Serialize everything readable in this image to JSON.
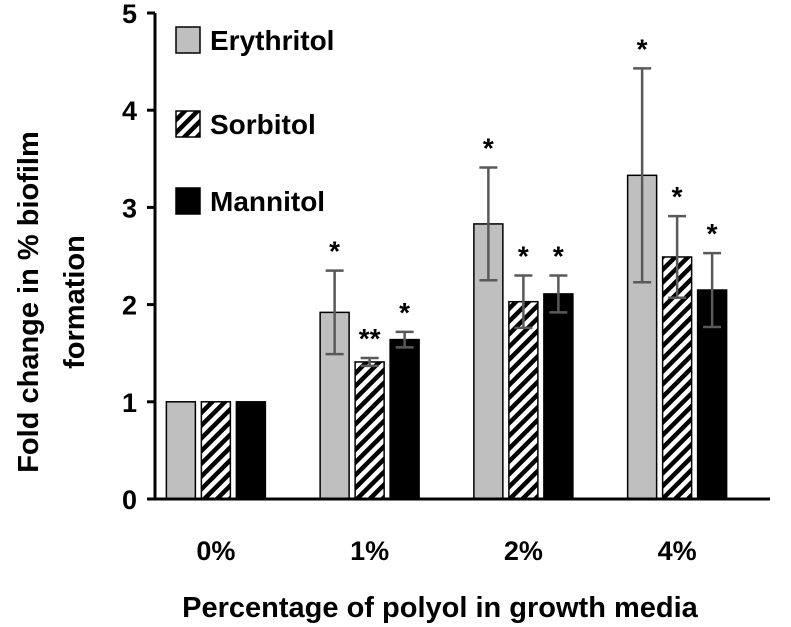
{
  "chart_data": {
    "type": "bar",
    "title": "",
    "xlabel": "Percentage of polyol in growth media",
    "ylabel_line1": "Fold change in % biofilm",
    "ylabel_line2": "formation",
    "categories": [
      "0%",
      "1%",
      "2%",
      "4%"
    ],
    "ylim": [
      0,
      5
    ],
    "yticks": [
      "0",
      "1",
      "2",
      "3",
      "4",
      "5"
    ],
    "grid": false,
    "legend_position": "top-left",
    "series": [
      {
        "name": "Erythritol",
        "fill": "#bfbfbf",
        "pattern": "solid",
        "values": [
          1.0,
          1.92,
          2.83,
          3.33
        ],
        "errors": [
          0,
          0.43,
          0.58,
          1.1
        ],
        "annotations": [
          "",
          "*",
          "*",
          "*"
        ]
      },
      {
        "name": "Sorbitol",
        "fill": "#ffffff",
        "pattern": "diagonal-hatch",
        "values": [
          1.0,
          1.41,
          2.03,
          2.49
        ],
        "errors": [
          0,
          0.04,
          0.27,
          0.42
        ],
        "annotations": [
          "",
          "**",
          "*",
          "*"
        ]
      },
      {
        "name": "Mannitol",
        "fill": "#000000",
        "pattern": "solid",
        "values": [
          1.0,
          1.64,
          2.11,
          2.15
        ],
        "errors": [
          0,
          0.08,
          0.19,
          0.38
        ],
        "annotations": [
          "",
          "*",
          "*",
          "*"
        ]
      }
    ]
  },
  "colors": {
    "axis": "#000000",
    "error_bar": "#595959",
    "bar_outline": "#000000"
  }
}
